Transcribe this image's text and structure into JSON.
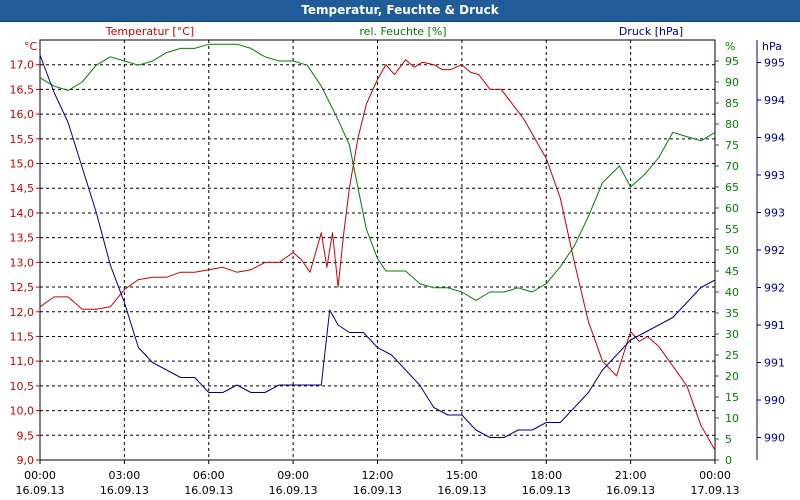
{
  "window": {
    "title": "Temperatur, Feuchte & Druck"
  },
  "colors": {
    "temperature": "#cc0000",
    "humidity": "#008000",
    "pressure": "#00008b",
    "titlebar": "#1f5c99",
    "grid": "#000000"
  },
  "chart_data": {
    "type": "line",
    "title": "Temperatur, Feuchte & Druck",
    "grid": true,
    "x_ticks": [
      {
        "hour": 0,
        "time": "00:00",
        "date": "16.09.13"
      },
      {
        "hour": 3,
        "time": "03:00",
        "date": "16.09.13"
      },
      {
        "hour": 6,
        "time": "06:00",
        "date": "16.09.13"
      },
      {
        "hour": 9,
        "time": "09:00",
        "date": "16.09.13"
      },
      {
        "hour": 12,
        "time": "12:00",
        "date": "16.09.13"
      },
      {
        "hour": 15,
        "time": "15:00",
        "date": "16.09.13"
      },
      {
        "hour": 18,
        "time": "18:00",
        "date": "16.09.13"
      },
      {
        "hour": 21,
        "time": "21:00",
        "date": "16.09.13"
      },
      {
        "hour": 24,
        "time": "00:00",
        "date": "17.09.13"
      }
    ],
    "axes": {
      "temperature": {
        "label": "Temperatur [°C]",
        "unit": "°C",
        "min": 9.0,
        "max": 17.5,
        "ticks": [
          "17,0",
          "16,5",
          "16,0",
          "15,5",
          "15,0",
          "14,5",
          "14,0",
          "13,5",
          "13,0",
          "12,5",
          "12,0",
          "11,5",
          "11,0",
          "10,5",
          "10,0",
          "9,5",
          "9,0"
        ],
        "tick_values": [
          17.0,
          16.5,
          16.0,
          15.5,
          15.0,
          14.5,
          14.0,
          13.5,
          13.0,
          12.5,
          12.0,
          11.5,
          11.0,
          10.5,
          10.0,
          9.5,
          9.0
        ]
      },
      "humidity": {
        "label": "rel. Feuchte [%]",
        "unit": "%",
        "min": 0,
        "max": 100,
        "ticks": [
          "95",
          "90",
          "85",
          "80",
          "75",
          "70",
          "65",
          "60",
          "55",
          "50",
          "45",
          "40",
          "35",
          "30",
          "25",
          "20",
          "15",
          "10",
          "5",
          "0"
        ],
        "tick_values": [
          95,
          90,
          85,
          80,
          75,
          70,
          65,
          60,
          55,
          50,
          45,
          40,
          35,
          30,
          25,
          20,
          15,
          10,
          5,
          0
        ]
      },
      "pressure": {
        "label": "Druck [hPa]",
        "unit": "hPa",
        "min": 989.7,
        "max": 995.3,
        "ticks": [
          "995",
          "994",
          "994",
          "993",
          "993",
          "992",
          "992",
          "991",
          "991",
          "990",
          "990"
        ],
        "tick_values": [
          995.0,
          994.5,
          994.0,
          993.5,
          993.0,
          992.5,
          992.0,
          991.5,
          991.0,
          990.5,
          990.0
        ]
      }
    },
    "series": [
      {
        "name": "Temperatur [°C]",
        "axis": "temperature",
        "x": [
          0,
          0.5,
          1.0,
          1.5,
          2.0,
          2.5,
          3.0,
          3.5,
          4.0,
          4.5,
          5.0,
          5.5,
          6.0,
          6.5,
          7.0,
          7.5,
          8.0,
          8.5,
          9.0,
          9.3,
          9.6,
          10.0,
          10.2,
          10.4,
          10.6,
          10.8,
          11.0,
          11.3,
          11.6,
          12.0,
          12.3,
          12.6,
          13.0,
          13.3,
          13.6,
          14.0,
          14.3,
          14.6,
          15.0,
          15.3,
          15.6,
          16.0,
          16.4,
          16.8,
          17.2,
          17.6,
          18.0,
          18.5,
          19.0,
          19.5,
          20.0,
          20.5,
          21.0,
          21.3,
          21.6,
          22.0,
          22.5,
          23.0,
          23.5,
          24.0
        ],
        "values": [
          12.1,
          12.3,
          12.3,
          12.05,
          12.05,
          12.1,
          12.45,
          12.65,
          12.7,
          12.7,
          12.8,
          12.8,
          12.85,
          12.9,
          12.8,
          12.85,
          13.0,
          13.0,
          13.2,
          13.05,
          12.8,
          13.6,
          12.9,
          13.6,
          12.5,
          13.6,
          14.5,
          15.5,
          16.2,
          16.7,
          17.0,
          16.8,
          17.1,
          16.95,
          17.05,
          17.0,
          16.9,
          16.9,
          17.0,
          16.85,
          16.8,
          16.5,
          16.5,
          16.2,
          15.9,
          15.5,
          15.1,
          14.3,
          13.0,
          11.8,
          11.0,
          10.7,
          11.6,
          11.4,
          11.5,
          11.3,
          10.9,
          10.5,
          9.7,
          9.2
        ]
      },
      {
        "name": "rel. Feuchte [%]",
        "axis": "humidity",
        "x": [
          0,
          0.5,
          1.0,
          1.5,
          2.0,
          2.5,
          3.0,
          3.5,
          4.0,
          4.5,
          5.0,
          5.5,
          6.0,
          6.5,
          7.0,
          7.5,
          8.0,
          8.5,
          9.0,
          9.5,
          10.0,
          10.3,
          10.6,
          11.0,
          11.3,
          11.6,
          12.0,
          12.3,
          12.6,
          13.0,
          13.5,
          14.0,
          14.5,
          15.0,
          15.5,
          16.0,
          16.5,
          17.0,
          17.5,
          18.0,
          18.5,
          19.0,
          19.5,
          20.0,
          20.3,
          20.6,
          21.0,
          21.5,
          22.0,
          22.5,
          23.0,
          23.5,
          24.0
        ],
        "values": [
          91,
          89,
          88,
          90,
          94,
          96,
          95,
          94,
          95,
          97,
          98,
          98,
          99,
          99,
          99,
          98,
          96,
          95,
          95,
          94,
          89,
          85,
          81,
          75,
          65,
          55,
          48,
          45,
          45,
          45,
          42,
          41,
          41,
          40,
          38,
          40,
          40,
          41,
          40,
          42,
          46,
          51,
          58,
          66,
          68,
          70,
          65,
          68,
          72,
          78,
          77,
          76,
          78
        ]
      },
      {
        "name": "Druck [hPa]",
        "axis": "pressure",
        "x": [
          0,
          0.5,
          1.0,
          1.5,
          2.0,
          2.5,
          3.0,
          3.5,
          4.0,
          4.5,
          5.0,
          5.5,
          6.0,
          6.5,
          7.0,
          7.5,
          8.0,
          8.5,
          9.0,
          9.5,
          10.0,
          10.3,
          10.6,
          11.0,
          11.5,
          12.0,
          12.5,
          13.0,
          13.5,
          14.0,
          14.5,
          15.0,
          15.5,
          16.0,
          16.5,
          17.0,
          17.5,
          18.0,
          18.5,
          19.0,
          19.5,
          20.0,
          20.5,
          21.0,
          21.5,
          22.0,
          22.5,
          23.0,
          23.5,
          24.0
        ],
        "values": [
          995.1,
          994.6,
          994.2,
          993.6,
          993.0,
          992.3,
          991.8,
          991.2,
          991.0,
          990.9,
          990.8,
          990.8,
          990.6,
          990.6,
          990.7,
          990.6,
          990.6,
          990.7,
          990.7,
          990.7,
          990.7,
          991.7,
          991.5,
          991.4,
          991.4,
          991.2,
          991.1,
          990.9,
          990.7,
          990.4,
          990.3,
          990.3,
          990.1,
          990.0,
          990.0,
          990.1,
          990.1,
          990.2,
          990.2,
          990.4,
          990.6,
          990.9,
          991.1,
          991.3,
          991.4,
          991.5,
          991.6,
          991.8,
          992.0,
          992.1
        ]
      }
    ]
  }
}
